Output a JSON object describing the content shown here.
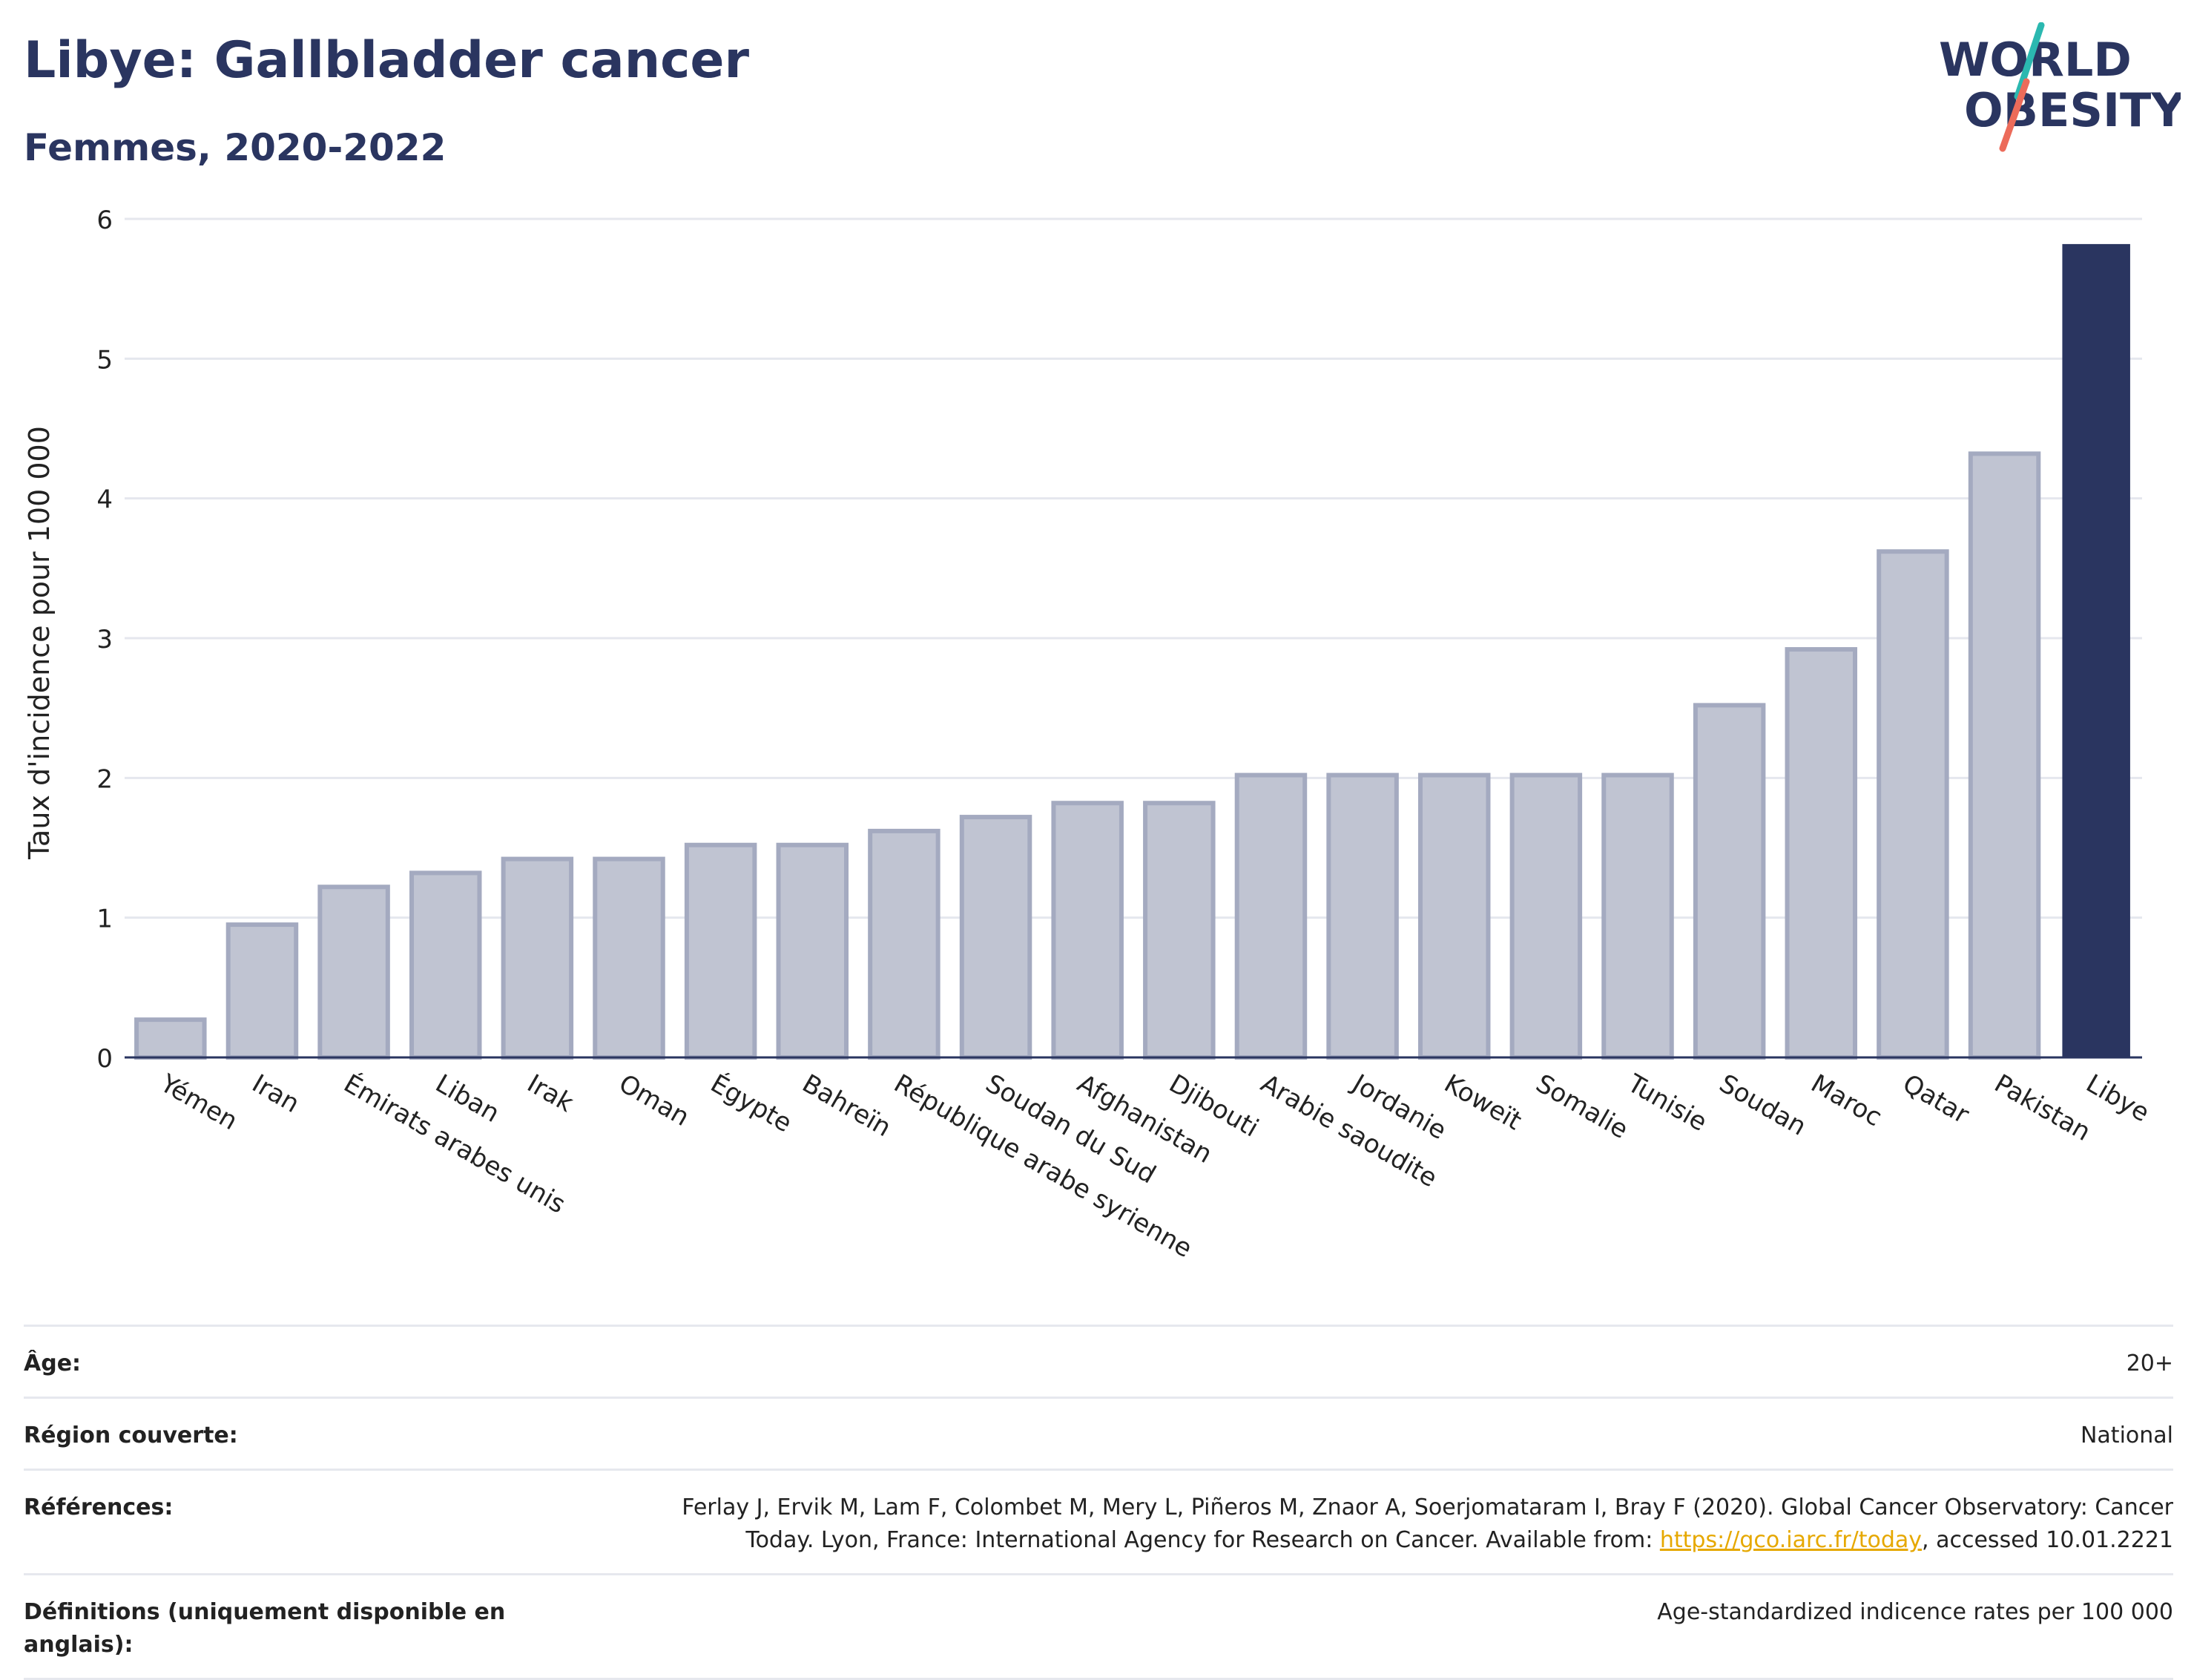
{
  "header": {
    "title": "Libye: Gallbladder cancer",
    "subtitle": "Femmes, 2020-2022"
  },
  "logo": {
    "line1": "WORLD",
    "line2": "OBESITY",
    "accent_teal": "#2bb8b0",
    "accent_coral": "#ec6b5a",
    "text_color": "#2a3560"
  },
  "colors": {
    "bar_default": "#c0c4d2",
    "bar_default_stroke": "#a4aac0",
    "bar_highlight": "#2a3560",
    "grid": "#e5e7ee",
    "axis": "#2a3560"
  },
  "chart_data": {
    "type": "bar",
    "title": "",
    "xlabel": "",
    "ylabel": "Taux d'incidence pour 100 000",
    "ylim": [
      0,
      6
    ],
    "yticks": [
      "0",
      "1",
      "2",
      "3",
      "4",
      "5",
      "6"
    ],
    "grid": true,
    "highlight": "Libye",
    "categories": [
      "Yémen",
      "Iran",
      "Émirats arabes unis",
      "Liban",
      "Irak",
      "Oman",
      "Égypte",
      "Bahreïn",
      "République arabe syrienne",
      "Soudan du Sud",
      "Afghanistan",
      "Djibouti",
      "Arabie saoudite",
      "Jordanie",
      "Koweït",
      "Somalie",
      "Tunisie",
      "Soudan",
      "Maroc",
      "Qatar",
      "Pakistan",
      "Libye"
    ],
    "values": [
      0.27,
      0.95,
      1.22,
      1.32,
      1.42,
      1.42,
      1.52,
      1.52,
      1.62,
      1.72,
      1.82,
      1.82,
      2.02,
      2.02,
      2.02,
      2.02,
      2.02,
      2.52,
      2.92,
      3.62,
      4.32,
      5.82
    ]
  },
  "meta": {
    "age_label": "Âge:",
    "age_value": "20+",
    "region_label": "Région couverte:",
    "region_value": "National",
    "references_label": "Références:",
    "references_value_before": "Ferlay J, Ervik M, Lam F, Colombet M, Mery L, Piñeros M, Znaor A, Soerjomataram I, Bray F (2020). Global Cancer Observatory: Cancer Today. Lyon, France: International Agency for Research on Cancer. Available from: ",
    "references_link": "https://gco.iarc.fr/today",
    "references_value_after": ", accessed 10.01.2221",
    "definitions_label": "Définitions (uniquement disponible en anglais):",
    "definitions_value": "Age-standardized indicence rates per 100 000"
  }
}
